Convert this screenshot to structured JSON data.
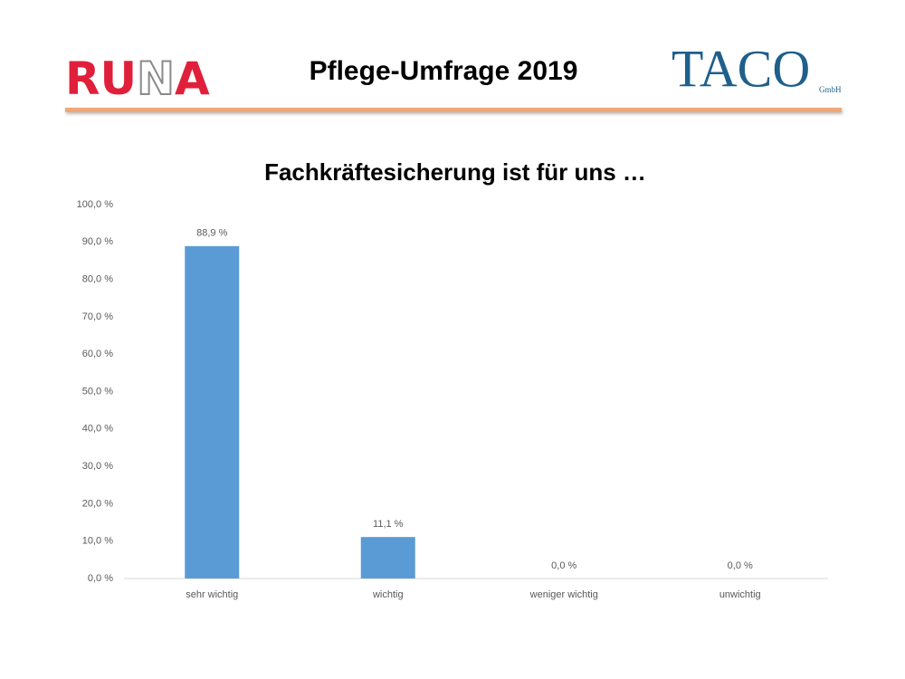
{
  "header": {
    "title": "Pflege-Umfrage 2019",
    "left_logo": [
      "RU",
      "N",
      "A"
    ],
    "right_logo": "TACO",
    "right_logo_suffix": "GmbH"
  },
  "chart_data": {
    "type": "bar",
    "title": "Fachkräftesicherung ist für uns …",
    "categories": [
      "sehr wichtig",
      "wichtig",
      "weniger wichtig",
      "unwichtig"
    ],
    "values": [
      88.9,
      11.1,
      0,
      0
    ],
    "value_labels": [
      "88,9 %",
      "11,1 %",
      "0,0 %",
      "0,0 %"
    ],
    "color": "#5b9bd5",
    "ylim": [
      0,
      100
    ],
    "yticks": [
      {
        "value": 0,
        "label": "0,0 %"
      },
      {
        "value": 10,
        "label": "10,0 %"
      },
      {
        "value": 20,
        "label": "20,0 %"
      },
      {
        "value": 30,
        "label": "30,0 %"
      },
      {
        "value": 40,
        "label": "40,0 %"
      },
      {
        "value": 50,
        "label": "50,0 %"
      },
      {
        "value": 60,
        "label": "60,0 %"
      },
      {
        "value": 70,
        "label": "70,0 %"
      },
      {
        "value": 80,
        "label": "80,0 %"
      },
      {
        "value": 90,
        "label": "90,0 %"
      },
      {
        "value": 100,
        "label": "100,0 %"
      }
    ],
    "grid": false
  }
}
